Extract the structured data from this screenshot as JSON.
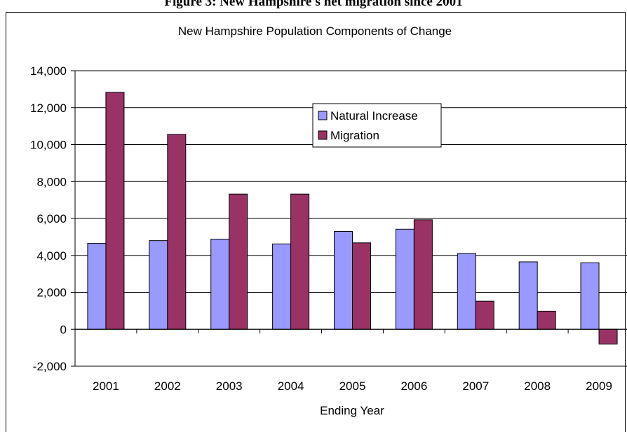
{
  "figure_caption": "Figure 3: New Hampshire's net migration since 2001",
  "chart_data": {
    "type": "bar",
    "title": "New Hampshire Population Components of Change",
    "xlabel": "Ending Year",
    "ylabel": "",
    "categories": [
      "2001",
      "2002",
      "2003",
      "2004",
      "2005",
      "2006",
      "2007",
      "2008",
      "2009"
    ],
    "series": [
      {
        "name": "Natural Increase",
        "color": "#9999ff",
        "values": [
          4650,
          4800,
          4880,
          4620,
          5300,
          5420,
          4100,
          3650,
          3600
        ]
      },
      {
        "name": "Migration",
        "color": "#993366",
        "values": [
          12830,
          10550,
          7320,
          7320,
          4680,
          5930,
          1520,
          980,
          -800
        ]
      }
    ],
    "ylim": [
      -2000,
      14000
    ],
    "yticks": [
      -2000,
      0,
      2000,
      4000,
      6000,
      8000,
      10000,
      12000,
      14000
    ],
    "ytick_labels": [
      "-2,000",
      "0",
      "2,000",
      "4,000",
      "6,000",
      "8,000",
      "10,000",
      "12,000",
      "14,000"
    ],
    "grid": true,
    "legend_position": "top-center"
  }
}
